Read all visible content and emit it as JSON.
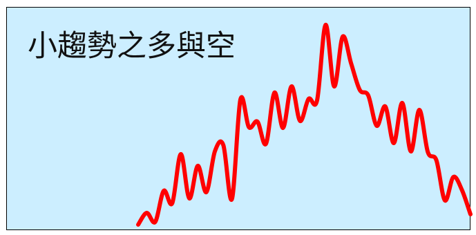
{
  "slide": {
    "title": "小趨勢之多與空",
    "background_color": "#cceeff",
    "border_color": "#000000"
  },
  "trend_line": {
    "color": "#ff0000",
    "description_shape": "oscillating",
    "values": [
      5.0,
      22.0,
      9.0,
      54.0,
      36.0,
      107.0,
      43.0,
      90.0,
      52.0,
      111.0,
      120.0,
      42.0,
      186.0,
      146.0,
      154.0,
      122.0,
      196.0,
      145.0,
      205.0,
      155.0,
      187.0,
      185.0,
      294.0,
      205.0,
      277.0,
      238.0,
      200.0,
      192.0,
      148.0,
      176.0,
      123.0,
      181.0,
      111.0,
      171.0,
      110.0,
      98.0,
      40.0,
      74.0,
      55.0,
      20.0
    ]
  }
}
